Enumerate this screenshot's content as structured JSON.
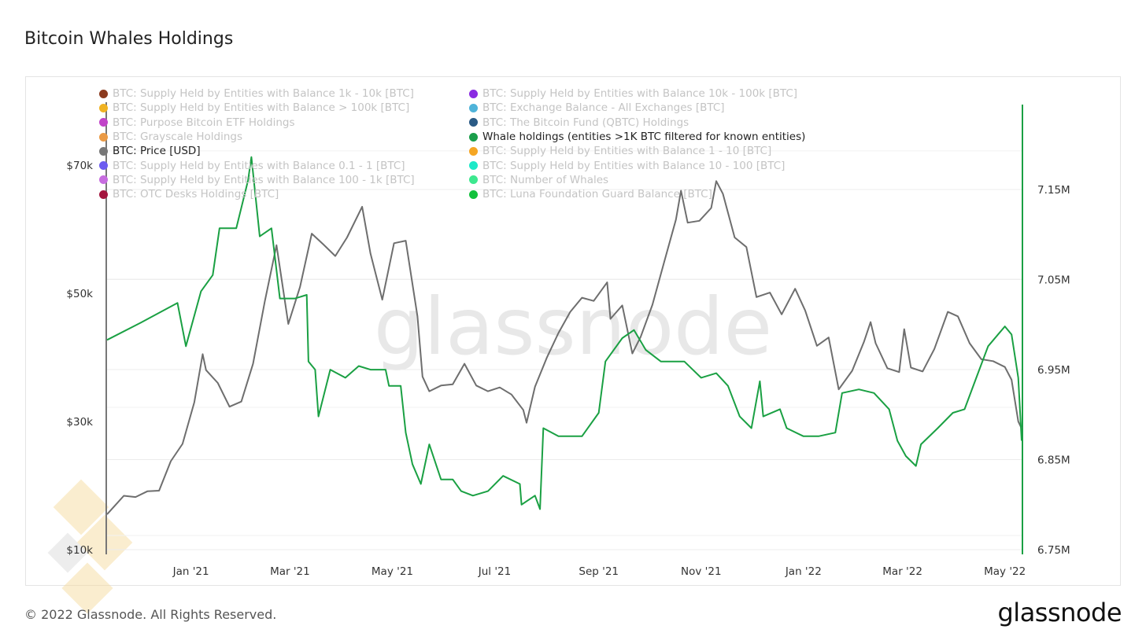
{
  "title": "Bitcoin Whales Holdings",
  "footer": "© 2022 Glassnode. All Rights Reserved.",
  "logo": "glassnode",
  "watermark": "glassnode",
  "legend": [
    {
      "label": "BTC: Supply Held by Entities with Balance 1k - 10k [BTC]",
      "color": "#8b3a1e",
      "active": false
    },
    {
      "label": "BTC: Supply Held by Entities with Balance 10k - 100k [BTC]",
      "color": "#8a2be2",
      "active": false
    },
    {
      "label": "BTC: Supply Held by Entities with Balance > 100k [BTC]",
      "color": "#f0b323",
      "active": false
    },
    {
      "label": "BTC: Exchange Balance - All Exchanges [BTC]",
      "color": "#4fb3d9",
      "active": false
    },
    {
      "label": "BTC: Purpose Bitcoin ETF Holdings",
      "color": "#c144c8",
      "active": false
    },
    {
      "label": "BTC: The Bitcoin Fund (QBTC) Holdings",
      "color": "#2a5a85",
      "active": false
    },
    {
      "label": "BTC: Grayscale Holdings",
      "color": "#ea9a45",
      "active": false
    },
    {
      "label": "Whale holdings (entities >1K BTC filtered for known entities)",
      "color": "#1a9e4a",
      "active": true
    },
    {
      "label": "BTC: Price [USD]",
      "color": "#777777",
      "active": true
    },
    {
      "label": "BTC: Supply Held by Entities with Balance 1 - 10 [BTC]",
      "color": "#f5a623",
      "active": false
    },
    {
      "label": "BTC: Supply Held by Entities with Balance 0.1 - 1 [BTC]",
      "color": "#6c5cf0",
      "active": false
    },
    {
      "label": "BTC: Supply Held by Entities with Balance 10 - 100 [BTC]",
      "color": "#1de9c8",
      "active": false
    },
    {
      "label": "BTC: Supply Held by Entities with Balance 100 - 1k [BTC]",
      "color": "#c76ce0",
      "active": false
    },
    {
      "label": "BTC: Number of Whales",
      "color": "#3de88f",
      "active": false
    },
    {
      "label": "BTC: OTC Desks Holdings [BTC]",
      "color": "#a3163f",
      "active": false
    },
    {
      "label": "BTC: Luna Foundation Guard Balance [BTC]",
      "color": "#12c13c",
      "active": false
    }
  ],
  "chart_data": {
    "type": "line",
    "title": "Bitcoin Whales Holdings",
    "x_range": [
      "2020-11-12",
      "2022-05-11"
    ],
    "x_ticks": [
      {
        "date": "2021-01-01",
        "label": "Jan '21"
      },
      {
        "date": "2021-03-01",
        "label": "Mar '21"
      },
      {
        "date": "2021-05-01",
        "label": "May '21"
      },
      {
        "date": "2021-07-01",
        "label": "Jul '21"
      },
      {
        "date": "2021-09-01",
        "label": "Sep '21"
      },
      {
        "date": "2021-11-01",
        "label": "Nov '21"
      },
      {
        "date": "2022-01-01",
        "label": "Jan '22"
      },
      {
        "date": "2022-03-01",
        "label": "Mar '22"
      },
      {
        "date": "2022-05-01",
        "label": "May '22"
      }
    ],
    "y_left": {
      "label": "BTC: Price [USD]",
      "range": [
        9260,
        79800
      ],
      "ticks": [
        {
          "v": 10000,
          "label": "$10k"
        },
        {
          "v": 30000,
          "label": "$30k"
        },
        {
          "v": 50000,
          "label": "$50k"
        },
        {
          "v": 70000,
          "label": "$70k"
        }
      ]
    },
    "y_right": {
      "label": "Whale holdings",
      "range": [
        6.7448,
        7.247
      ],
      "ticks": [
        {
          "v": 6.75,
          "label": "6.75M"
        },
        {
          "v": 6.85,
          "label": "6.85M"
        },
        {
          "v": 6.95,
          "label": "6.95M"
        },
        {
          "v": 7.05,
          "label": "7.05M"
        },
        {
          "v": 7.15,
          "label": "7.15M"
        }
      ]
    },
    "grid": true,
    "series": [
      {
        "name": "BTC: Price [USD]",
        "axis": "left",
        "color": "#6e6e6e",
        "points": [
          [
            "2020-11-12",
            15500
          ],
          [
            "2020-11-22",
            18400
          ],
          [
            "2020-11-29",
            18200
          ],
          [
            "2020-12-06",
            19100
          ],
          [
            "2020-12-13",
            19200
          ],
          [
            "2020-12-20",
            23800
          ],
          [
            "2020-12-27",
            26500
          ],
          [
            "2021-01-03",
            33000
          ],
          [
            "2021-01-08",
            40500
          ],
          [
            "2021-01-10",
            38000
          ],
          [
            "2021-01-17",
            36000
          ],
          [
            "2021-01-24",
            32300
          ],
          [
            "2021-01-31",
            33100
          ],
          [
            "2021-02-07",
            39000
          ],
          [
            "2021-02-14",
            48700
          ],
          [
            "2021-02-21",
            57500
          ],
          [
            "2021-02-28",
            45200
          ],
          [
            "2021-03-07",
            51000
          ],
          [
            "2021-03-14",
            59300
          ],
          [
            "2021-03-21",
            57600
          ],
          [
            "2021-03-28",
            55800
          ],
          [
            "2021-04-04",
            58700
          ],
          [
            "2021-04-13",
            63500
          ],
          [
            "2021-04-18",
            56200
          ],
          [
            "2021-04-25",
            49000
          ],
          [
            "2021-05-02",
            57800
          ],
          [
            "2021-05-09",
            58200
          ],
          [
            "2021-05-16",
            46400
          ],
          [
            "2021-05-19",
            37000
          ],
          [
            "2021-05-23",
            34700
          ],
          [
            "2021-05-30",
            35600
          ],
          [
            "2021-06-06",
            35800
          ],
          [
            "2021-06-13",
            39000
          ],
          [
            "2021-06-20",
            35600
          ],
          [
            "2021-06-27",
            34700
          ],
          [
            "2021-07-04",
            35300
          ],
          [
            "2021-07-11",
            34200
          ],
          [
            "2021-07-18",
            31800
          ],
          [
            "2021-07-20",
            29800
          ],
          [
            "2021-07-25",
            35400
          ],
          [
            "2021-08-01",
            39900
          ],
          [
            "2021-08-08",
            43800
          ],
          [
            "2021-08-15",
            47100
          ],
          [
            "2021-08-22",
            49300
          ],
          [
            "2021-08-29",
            48800
          ],
          [
            "2021-09-06",
            51700
          ],
          [
            "2021-09-08",
            46000
          ],
          [
            "2021-09-15",
            48100
          ],
          [
            "2021-09-21",
            40600
          ],
          [
            "2021-09-26",
            43200
          ],
          [
            "2021-10-03",
            48200
          ],
          [
            "2021-10-10",
            54900
          ],
          [
            "2021-10-17",
            61500
          ],
          [
            "2021-10-20",
            66000
          ],
          [
            "2021-10-24",
            61000
          ],
          [
            "2021-10-31",
            61300
          ],
          [
            "2021-11-07",
            63300
          ],
          [
            "2021-11-10",
            67500
          ],
          [
            "2021-11-14",
            65500
          ],
          [
            "2021-11-21",
            58700
          ],
          [
            "2021-11-28",
            57200
          ],
          [
            "2021-12-04",
            49400
          ],
          [
            "2021-12-12",
            50100
          ],
          [
            "2021-12-19",
            46700
          ],
          [
            "2021-12-27",
            50700
          ],
          [
            "2022-01-02",
            47300
          ],
          [
            "2022-01-09",
            41800
          ],
          [
            "2022-01-16",
            43100
          ],
          [
            "2022-01-22",
            35000
          ],
          [
            "2022-01-30",
            37900
          ],
          [
            "2022-02-06",
            42400
          ],
          [
            "2022-02-10",
            45500
          ],
          [
            "2022-02-13",
            42200
          ],
          [
            "2022-02-20",
            38300
          ],
          [
            "2022-02-27",
            37700
          ],
          [
            "2022-03-02",
            44400
          ],
          [
            "2022-03-06",
            38400
          ],
          [
            "2022-03-13",
            37800
          ],
          [
            "2022-03-20",
            41300
          ],
          [
            "2022-03-28",
            47100
          ],
          [
            "2022-04-03",
            46400
          ],
          [
            "2022-04-10",
            42200
          ],
          [
            "2022-04-17",
            39700
          ],
          [
            "2022-04-24",
            39400
          ],
          [
            "2022-05-01",
            38500
          ],
          [
            "2022-05-05",
            36500
          ],
          [
            "2022-05-09",
            30000
          ],
          [
            "2022-05-11",
            28900
          ]
        ]
      },
      {
        "name": "Whale holdings (entities >1K BTC filtered for known entities)",
        "axis": "right",
        "color": "#1aa043",
        "points": [
          [
            "2020-11-12",
            6.983
          ],
          [
            "2020-12-02",
            7.002
          ],
          [
            "2020-12-24",
            7.024
          ],
          [
            "2020-12-29",
            6.976
          ],
          [
            "2021-01-07",
            7.037
          ],
          [
            "2021-01-14",
            7.055
          ],
          [
            "2021-01-18",
            7.107
          ],
          [
            "2021-01-28",
            7.107
          ],
          [
            "2021-02-04",
            7.16
          ],
          [
            "2021-02-06",
            7.186
          ],
          [
            "2021-02-11",
            7.098
          ],
          [
            "2021-02-18",
            7.107
          ],
          [
            "2021-02-23",
            7.029
          ],
          [
            "2021-03-04",
            7.029
          ],
          [
            "2021-03-11",
            7.033
          ],
          [
            "2021-03-12",
            6.959
          ],
          [
            "2021-03-16",
            6.95
          ],
          [
            "2021-03-18",
            6.898
          ],
          [
            "2021-03-25",
            6.95
          ],
          [
            "2021-04-03",
            6.941
          ],
          [
            "2021-04-11",
            6.954
          ],
          [
            "2021-04-18",
            6.95
          ],
          [
            "2021-04-27",
            6.95
          ],
          [
            "2021-04-29",
            6.932
          ],
          [
            "2021-05-06",
            6.932
          ],
          [
            "2021-05-09",
            6.88
          ],
          [
            "2021-05-13",
            6.845
          ],
          [
            "2021-05-18",
            6.823
          ],
          [
            "2021-05-23",
            6.867
          ],
          [
            "2021-05-30",
            6.828
          ],
          [
            "2021-06-06",
            6.828
          ],
          [
            "2021-06-11",
            6.815
          ],
          [
            "2021-06-18",
            6.81
          ],
          [
            "2021-06-27",
            6.815
          ],
          [
            "2021-07-06",
            6.832
          ],
          [
            "2021-07-16",
            6.823
          ],
          [
            "2021-07-17",
            6.8
          ],
          [
            "2021-07-25",
            6.81
          ],
          [
            "2021-07-28",
            6.795
          ],
          [
            "2021-07-30",
            6.885
          ],
          [
            "2021-08-08",
            6.876
          ],
          [
            "2021-08-22",
            6.876
          ],
          [
            "2021-09-01",
            6.902
          ],
          [
            "2021-09-05",
            6.959
          ],
          [
            "2021-09-15",
            6.985
          ],
          [
            "2021-09-22",
            6.994
          ],
          [
            "2021-09-29",
            6.972
          ],
          [
            "2021-10-08",
            6.959
          ],
          [
            "2021-10-22",
            6.959
          ],
          [
            "2021-11-01",
            6.941
          ],
          [
            "2021-11-10",
            6.946
          ],
          [
            "2021-11-17",
            6.932
          ],
          [
            "2021-11-24",
            6.898
          ],
          [
            "2021-12-01",
            6.885
          ],
          [
            "2021-12-06",
            6.937
          ],
          [
            "2021-12-08",
            6.898
          ],
          [
            "2021-12-18",
            6.906
          ],
          [
            "2021-12-22",
            6.885
          ],
          [
            "2022-01-01",
            6.876
          ],
          [
            "2022-01-10",
            6.876
          ],
          [
            "2022-01-20",
            6.88
          ],
          [
            "2022-01-24",
            6.924
          ],
          [
            "2022-02-03",
            6.928
          ],
          [
            "2022-02-12",
            6.924
          ],
          [
            "2022-02-21",
            6.906
          ],
          [
            "2022-02-26",
            6.871
          ],
          [
            "2022-03-03",
            6.854
          ],
          [
            "2022-03-09",
            6.843
          ],
          [
            "2022-03-12",
            6.867
          ],
          [
            "2022-03-22",
            6.885
          ],
          [
            "2022-03-31",
            6.902
          ],
          [
            "2022-04-07",
            6.906
          ],
          [
            "2022-04-14",
            6.941
          ],
          [
            "2022-04-21",
            6.976
          ],
          [
            "2022-05-01",
            6.998
          ],
          [
            "2022-05-05",
            6.989
          ],
          [
            "2022-05-09",
            6.941
          ],
          [
            "2022-05-11",
            6.871
          ]
        ]
      }
    ]
  }
}
